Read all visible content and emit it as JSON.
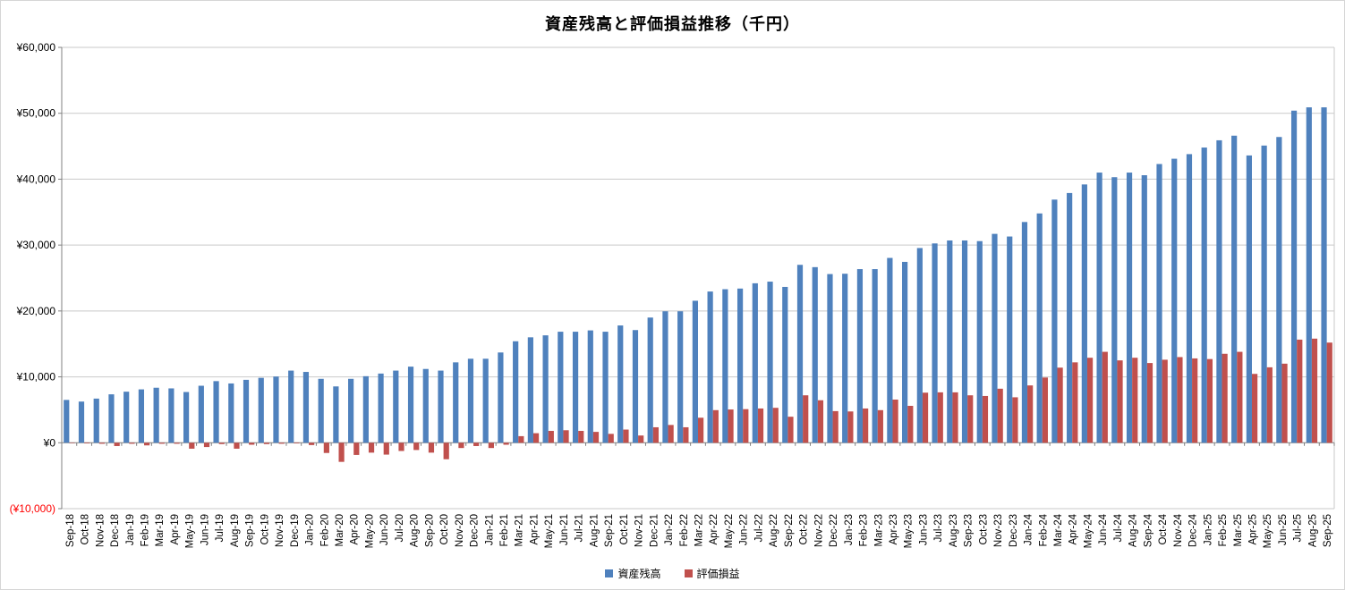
{
  "chart_data": {
    "type": "bar",
    "title": "資産残高と評価損益推移（千円）",
    "xlabel": "",
    "ylabel": "",
    "ylim": [
      -10000,
      60000
    ],
    "y_step": 10000,
    "grid": true,
    "legend_position": "bottom",
    "y_tick_labels": [
      {
        "value": 60000,
        "label": "¥60,000",
        "color": "#000000"
      },
      {
        "value": 50000,
        "label": "¥50,000",
        "color": "#000000"
      },
      {
        "value": 40000,
        "label": "¥40,000",
        "color": "#000000"
      },
      {
        "value": 30000,
        "label": "¥30,000",
        "color": "#000000"
      },
      {
        "value": 20000,
        "label": "¥20,000",
        "color": "#000000"
      },
      {
        "value": 10000,
        "label": "¥10,000",
        "color": "#000000"
      },
      {
        "value": 0,
        "label": "¥0",
        "color": "#000000"
      },
      {
        "value": -10000,
        "label": "(¥10,000)",
        "color": "#FF0000"
      }
    ],
    "categories": [
      "Sep-18",
      "Oct-18",
      "Nov-18",
      "Dec-18",
      "Jan-19",
      "Feb-19",
      "Mar-19",
      "Apr-19",
      "May-19",
      "Jun-19",
      "Jul-19",
      "Aug-19",
      "Sep-19",
      "Oct-19",
      "Nov-19",
      "Dec-19",
      "Jan-20",
      "Feb-20",
      "Mar-20",
      "Apr-20",
      "May-20",
      "Jun-20",
      "Jul-20",
      "Aug-20",
      "Sep-20",
      "Oct-20",
      "Nov-20",
      "Dec-20",
      "Jan-21",
      "Feb-21",
      "Mar-21",
      "Apr-21",
      "May-21",
      "Jun-21",
      "Jul-21",
      "Aug-21",
      "Sep-21",
      "Oct-21",
      "Nov-21",
      "Dec-21",
      "Jan-22",
      "Feb-22",
      "Mar-22",
      "Apr-22",
      "May-22",
      "Jun-22",
      "Jul-22",
      "Aug-22",
      "Sep-22",
      "Oct-22",
      "Nov-22",
      "Dec-22",
      "Jan-23",
      "Feb-23",
      "Mar-23",
      "Apr-23",
      "May-23",
      "Jun-23",
      "Jul-23",
      "Aug-23",
      "Sep-23",
      "Oct-23",
      "Nov-23",
      "Dec-23",
      "Jan-24",
      "Feb-24",
      "Mar-24",
      "Apr-24",
      "May-24",
      "Jun-24",
      "Jul-24",
      "Aug-24",
      "Sep-24",
      "Oct-24",
      "Nov-24",
      "Dec-24",
      "Jan-25",
      "Feb-25",
      "Mar-25",
      "Apr-25",
      "May-25",
      "Jun-25",
      "Jul-25",
      "Aug-25",
      "Sep-25"
    ],
    "series": [
      {
        "name": "資産残高",
        "color": "#4F81BD",
        "values": [
          6500,
          6250,
          6700,
          7350,
          7750,
          8100,
          8350,
          8250,
          7700,
          8650,
          9350,
          9000,
          9550,
          9850,
          10050,
          10950,
          10750,
          9700,
          8550,
          9700,
          10100,
          10500,
          10950,
          11550,
          11200,
          10950,
          12200,
          12750,
          12750,
          13700,
          15400,
          16000,
          16300,
          16850,
          16850,
          17050,
          16850,
          17800,
          17100,
          19000,
          19950,
          19950,
          21550,
          22950,
          23300,
          23400,
          24200,
          24450,
          23650,
          27000,
          26650,
          25600,
          25650,
          26350,
          26350,
          28050,
          27450,
          29550,
          30250,
          30700,
          30700,
          30600,
          31700,
          31300,
          33500,
          34800,
          36900,
          37900,
          39200,
          41000,
          40300,
          41000,
          40600,
          42300,
          43100,
          43800,
          44800,
          45900,
          46600,
          43600,
          45100,
          46400,
          50400,
          50900,
          50900
        ]
      },
      {
        "name": "評価損益",
        "color": "#C0504D",
        "values": [
          -50,
          -100,
          -150,
          -500,
          -150,
          -400,
          -150,
          -150,
          -900,
          -650,
          -200,
          -900,
          -300,
          -200,
          -150,
          -100,
          -350,
          -1550,
          -2900,
          -1850,
          -1500,
          -1800,
          -1250,
          -1100,
          -1500,
          -2500,
          -800,
          -500,
          -800,
          -300,
          1000,
          1450,
          1800,
          1900,
          1800,
          1650,
          1350,
          2000,
          1100,
          2350,
          2700,
          2350,
          3800,
          4950,
          5050,
          5100,
          5200,
          5300,
          3950,
          7200,
          6450,
          4800,
          4750,
          5200,
          4950,
          6550,
          5600,
          7600,
          7650,
          7650,
          7200,
          7100,
          8200,
          6900,
          8700,
          9900,
          11400,
          12200,
          12900,
          13800,
          12500,
          12900,
          12100,
          12600,
          13000,
          12800,
          12700,
          13500,
          13800,
          10450,
          11450,
          12000,
          15650,
          15800,
          15200
        ]
      }
    ]
  },
  "colors": {
    "axis": "#808080",
    "gridline": "#C9C9C9",
    "background": "#FFFFFF",
    "negative_label": "#FF0000",
    "chart_border": "#D6D6D6"
  }
}
